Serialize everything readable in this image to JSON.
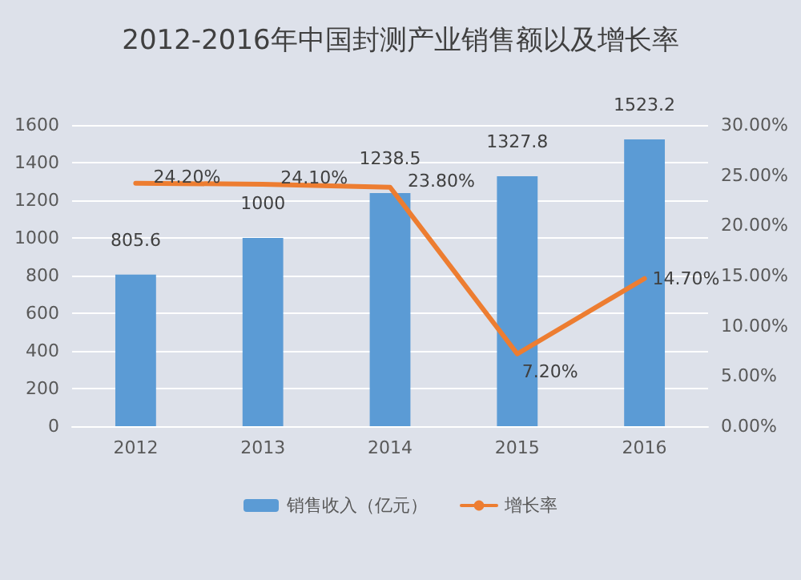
{
  "chart_data": {
    "type": "bar",
    "title": "2012-2016年中国封测产业销售额以及增长率",
    "categories": [
      "2012",
      "2013",
      "2014",
      "2015",
      "2016"
    ],
    "series": [
      {
        "name": "销售收入（亿元）",
        "color": "#5b9bd5",
        "values": [
          805.6,
          1000,
          1238.5,
          1327.8,
          1523.2
        ],
        "value_labels": [
          "805.6",
          "1000",
          "1238.5",
          "1327.8",
          "1523.2"
        ]
      },
      {
        "name": "增长率",
        "type": "line",
        "axis": "y2",
        "color": "#ed7d31",
        "values": [
          24.2,
          24.1,
          23.8,
          7.2,
          14.7
        ],
        "value_labels": [
          "24.20%",
          "24.10%",
          "23.80%",
          "7.20%",
          "14.70%"
        ]
      }
    ],
    "ylim": [
      0,
      1600
    ],
    "yticks": [
      0,
      200,
      400,
      600,
      800,
      1000,
      1200,
      1400,
      1600
    ],
    "y2lim": [
      0,
      30
    ],
    "y2ticks": [
      {
        "value": 0,
        "label": "0.00%"
      },
      {
        "value": 5,
        "label": "5.00%"
      },
      {
        "value": 10,
        "label": "10.00%"
      },
      {
        "value": 15,
        "label": "15.00%"
      },
      {
        "value": 20,
        "label": "20.00%"
      },
      {
        "value": 25,
        "label": "25.00%"
      },
      {
        "value": 30,
        "label": "30.00%"
      }
    ],
    "grid": "y",
    "legend": "bottom",
    "marker": "none",
    "line_style": "solid"
  }
}
